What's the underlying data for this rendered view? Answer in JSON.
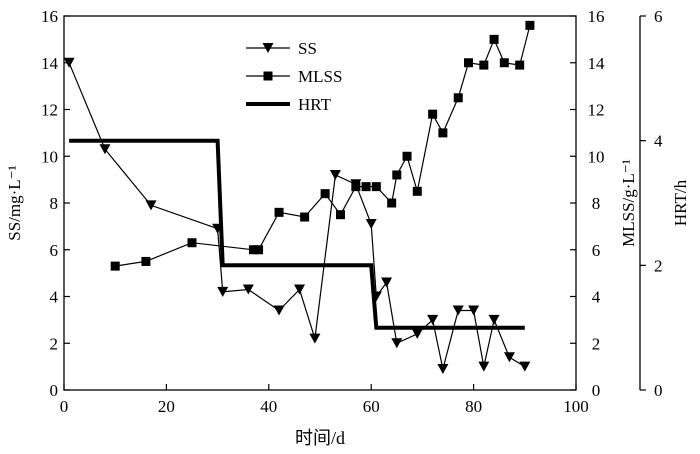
{
  "chart_data": {
    "type": "line",
    "title": "",
    "xlabel": "时间/d",
    "xlim": [
      0,
      100
    ],
    "xticks": [
      0,
      20,
      40,
      60,
      80,
      100
    ],
    "axes": {
      "left": {
        "label": "SS/mg·L⁻¹",
        "lim": [
          0,
          16
        ],
        "ticks": [
          0,
          2,
          4,
          6,
          8,
          10,
          12,
          14,
          16
        ]
      },
      "right1": {
        "label": "MLSS/g·L⁻¹",
        "lim": [
          0,
          16
        ],
        "ticks": [
          0,
          2,
          4,
          6,
          8,
          10,
          12,
          14,
          16
        ]
      },
      "right2": {
        "label": "HRT/h",
        "lim": [
          0,
          6
        ],
        "ticks": [
          0,
          2,
          4,
          6
        ]
      }
    },
    "grid": false,
    "legend_position": "top-center",
    "series": [
      {
        "name": "SS",
        "axis": "left",
        "marker": "triangle-down",
        "x": [
          1,
          8,
          17,
          30,
          31,
          36,
          42,
          46,
          49,
          53,
          57,
          60,
          61,
          63,
          65,
          69,
          72,
          74,
          77,
          80,
          82,
          84,
          87,
          90
        ],
        "y": [
          14.0,
          10.3,
          7.9,
          6.9,
          4.2,
          4.3,
          3.4,
          4.3,
          2.2,
          9.2,
          8.8,
          7.1,
          4.0,
          4.6,
          2.0,
          2.4,
          3.0,
          0.9,
          3.4,
          3.4,
          1.0,
          3.0,
          1.4,
          1.0
        ]
      },
      {
        "name": "MLSS",
        "axis": "right1",
        "marker": "square",
        "x": [
          10,
          16,
          25,
          37,
          38,
          42,
          47,
          51,
          54,
          57,
          59,
          61,
          64,
          65,
          67,
          69,
          72,
          74,
          77,
          79,
          82,
          84,
          86,
          89,
          91
        ],
        "y": [
          5.3,
          5.5,
          6.3,
          6.0,
          6.0,
          7.6,
          7.4,
          8.4,
          7.5,
          8.7,
          8.7,
          8.7,
          8.0,
          9.2,
          10.0,
          8.5,
          11.8,
          11.0,
          12.5,
          14.0,
          13.9,
          15.0,
          14.0,
          13.9,
          15.6
        ]
      },
      {
        "name": "HRT",
        "axis": "right2",
        "marker": "none",
        "x": [
          1,
          30,
          31,
          60,
          61,
          90
        ],
        "y": [
          4.0,
          4.0,
          2.0,
          2.0,
          1.0,
          1.0
        ]
      }
    ]
  }
}
